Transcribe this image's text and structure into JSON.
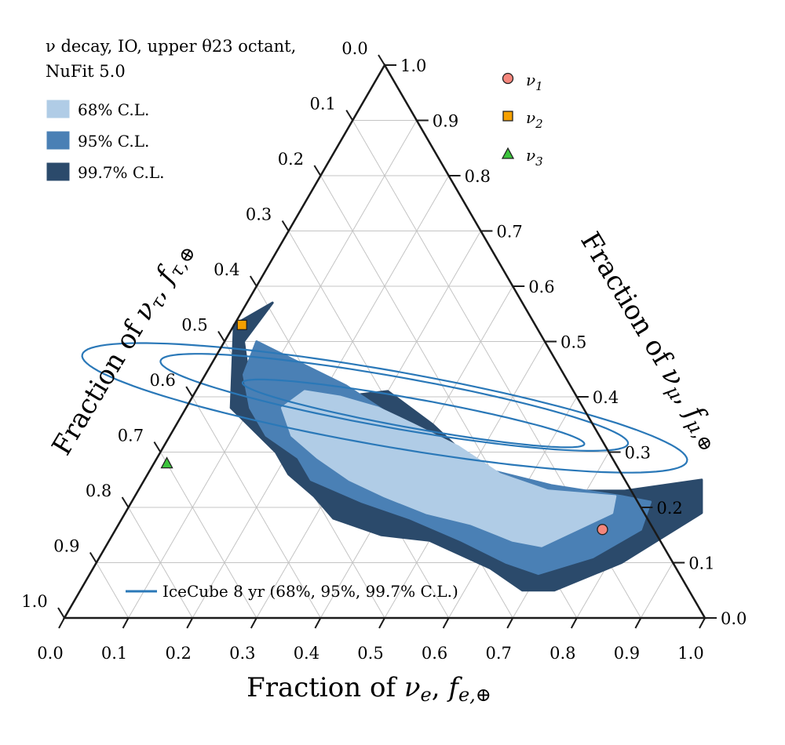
{
  "chart_data": {
    "type": "ternary",
    "header_lines": [
      "ν decay, IO, upper θ23 octant,",
      "NuFit 5.0"
    ],
    "axes": {
      "bottom": {
        "label": "Fraction of νe, fe,⊕",
        "ticks": [
          "0.0",
          "0.1",
          "0.2",
          "0.3",
          "0.4",
          "0.5",
          "0.6",
          "0.7",
          "0.8",
          "0.9",
          "1.0"
        ]
      },
      "right": {
        "label": "Fraction of νμ, fμ,⊕",
        "ticks": [
          "0.0",
          "0.1",
          "0.2",
          "0.3",
          "0.4",
          "0.5",
          "0.6",
          "0.7",
          "0.8",
          "0.9",
          "1.0"
        ]
      },
      "left": {
        "label": "Fraction of ντ, fτ,⊕",
        "ticks": [
          "0.0",
          "0.1",
          "0.2",
          "0.3",
          "0.4",
          "0.5",
          "0.6",
          "0.7",
          "0.8",
          "0.9",
          "1.0"
        ]
      }
    },
    "grid": true,
    "regions": [
      {
        "name": "99.7% C.L.",
        "color": "#2b4a6b",
        "points": [
          [
            0.0,
            0.53
          ],
          [
            0.04,
            0.57
          ],
          [
            0.03,
            0.5
          ],
          [
            0.08,
            0.42
          ],
          [
            0.17,
            0.38
          ],
          [
            0.23,
            0.4
          ],
          [
            0.3,
            0.41
          ],
          [
            0.4,
            0.35
          ],
          [
            0.5,
            0.28
          ],
          [
            0.62,
            0.23
          ],
          [
            0.76,
            0.23
          ],
          [
            0.87,
            0.25
          ],
          [
            0.9,
            0.19
          ],
          [
            0.82,
            0.1
          ],
          [
            0.74,
            0.05
          ],
          [
            0.69,
            0.05
          ],
          [
            0.62,
            0.09
          ],
          [
            0.5,
            0.14
          ],
          [
            0.42,
            0.15
          ],
          [
            0.33,
            0.18
          ],
          [
            0.28,
            0.22
          ],
          [
            0.22,
            0.26
          ],
          [
            0.18,
            0.3
          ],
          [
            0.07,
            0.38
          ]
        ]
      },
      {
        "name": "95% C.L.",
        "color": "#4a80b5",
        "points": [
          [
            0.05,
            0.5
          ],
          [
            0.14,
            0.46
          ],
          [
            0.23,
            0.42
          ],
          [
            0.32,
            0.37
          ],
          [
            0.42,
            0.32
          ],
          [
            0.52,
            0.27
          ],
          [
            0.64,
            0.24
          ],
          [
            0.76,
            0.22
          ],
          [
            0.81,
            0.21
          ],
          [
            0.82,
            0.16
          ],
          [
            0.77,
            0.11
          ],
          [
            0.7,
            0.08
          ],
          [
            0.64,
            0.1
          ],
          [
            0.55,
            0.14
          ],
          [
            0.45,
            0.18
          ],
          [
            0.36,
            0.21
          ],
          [
            0.26,
            0.25
          ],
          [
            0.22,
            0.29
          ],
          [
            0.15,
            0.33
          ],
          [
            0.1,
            0.38
          ],
          [
            0.06,
            0.44
          ]
        ]
      },
      {
        "name": "68% C.L.",
        "color": "#b0cce6",
        "points": [
          [
            0.17,
            0.41
          ],
          [
            0.23,
            0.4
          ],
          [
            0.3,
            0.38
          ],
          [
            0.37,
            0.35
          ],
          [
            0.46,
            0.31
          ],
          [
            0.55,
            0.26
          ],
          [
            0.64,
            0.23
          ],
          [
            0.75,
            0.22
          ],
          [
            0.76,
            0.19
          ],
          [
            0.72,
            0.16
          ],
          [
            0.68,
            0.13
          ],
          [
            0.63,
            0.14
          ],
          [
            0.55,
            0.17
          ],
          [
            0.47,
            0.19
          ],
          [
            0.39,
            0.22
          ],
          [
            0.32,
            0.25
          ],
          [
            0.25,
            0.29
          ],
          [
            0.19,
            0.33
          ],
          [
            0.15,
            0.38
          ]
        ]
      }
    ],
    "icecube_contours": [
      {
        "level": "68%",
        "center": [
          0.36,
          0.37
        ],
        "a": 0.3,
        "b": 0.024
      },
      {
        "level": "95%",
        "center": [
          0.32,
          0.39
        ],
        "a": 0.41,
        "b": 0.042
      },
      {
        "level": "99.7%",
        "center": [
          0.31,
          0.38
        ],
        "a": 0.53,
        "b": 0.062
      }
    ],
    "icecube_color": "#2a78b8",
    "points": [
      {
        "name": "ν1",
        "fe": 0.76,
        "fmu": 0.16,
        "marker": "circle",
        "color": "#f4867c"
      },
      {
        "name": "ν2",
        "fe": 0.0,
        "fmu": 0.53,
        "marker": "square",
        "color": "#f5a000"
      },
      {
        "name": "ν3",
        "fe": 0.02,
        "fmu": 0.28,
        "marker": "triangle",
        "color": "#3cc43c"
      }
    ],
    "legend": {
      "regions": [
        "68% C.L.",
        "95% C.L.",
        "99.7% C.L."
      ],
      "points": [
        "ν1",
        "ν2",
        "ν3"
      ],
      "icecube": "IceCube 8 yr (68%, 95%, 99.7% C.L.)"
    }
  }
}
